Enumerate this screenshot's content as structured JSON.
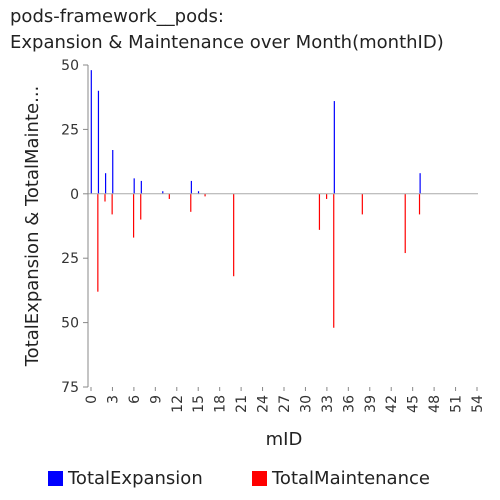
{
  "chart_data": {
    "type": "bar",
    "title": [
      "pods-framework__pods:",
      "Expansion & Maintenance over Month(monthID)"
    ],
    "xlabel": "mID",
    "ylabel": "TotalExpansion & TotalMainte...",
    "xlim": [
      0,
      54
    ],
    "x_ticks": [
      0,
      3,
      6,
      9,
      12,
      15,
      18,
      21,
      24,
      27,
      30,
      33,
      36,
      39,
      42,
      45,
      48,
      51,
      54
    ],
    "ylim": [
      -75,
      50
    ],
    "y_ticks": [
      {
        "value": 50,
        "label": "50"
      },
      {
        "value": 25,
        "label": "25"
      },
      {
        "value": 0,
        "label": "0"
      },
      {
        "value": -25,
        "label": "25"
      },
      {
        "value": -50,
        "label": "50"
      },
      {
        "value": -75,
        "label": "75"
      }
    ],
    "grid": false,
    "legend_position": "bottom",
    "series": [
      {
        "name": "TotalExpansion",
        "color": "#0000ff",
        "points": [
          {
            "x": 0,
            "y": 48
          },
          {
            "x": 1,
            "y": 40
          },
          {
            "x": 2,
            "y": 8
          },
          {
            "x": 3,
            "y": 17
          },
          {
            "x": 6,
            "y": 6
          },
          {
            "x": 7,
            "y": 5
          },
          {
            "x": 10,
            "y": 1
          },
          {
            "x": 14,
            "y": 5
          },
          {
            "x": 15,
            "y": 1
          },
          {
            "x": 34,
            "y": 36
          },
          {
            "x": 46,
            "y": 8
          }
        ]
      },
      {
        "name": "TotalMaintenance",
        "color": "#ff0000",
        "points": [
          {
            "x": 1,
            "y": -38
          },
          {
            "x": 2,
            "y": -3
          },
          {
            "x": 3,
            "y": -8
          },
          {
            "x": 6,
            "y": -17
          },
          {
            "x": 7,
            "y": -10
          },
          {
            "x": 11,
            "y": -2
          },
          {
            "x": 14,
            "y": -7
          },
          {
            "x": 16,
            "y": -1
          },
          {
            "x": 20,
            "y": -32
          },
          {
            "x": 32,
            "y": -14
          },
          {
            "x": 33,
            "y": -2
          },
          {
            "x": 34,
            "y": -52
          },
          {
            "x": 38,
            "y": -8
          },
          {
            "x": 44,
            "y": -23
          },
          {
            "x": 46,
            "y": -8
          }
        ]
      }
    ]
  }
}
